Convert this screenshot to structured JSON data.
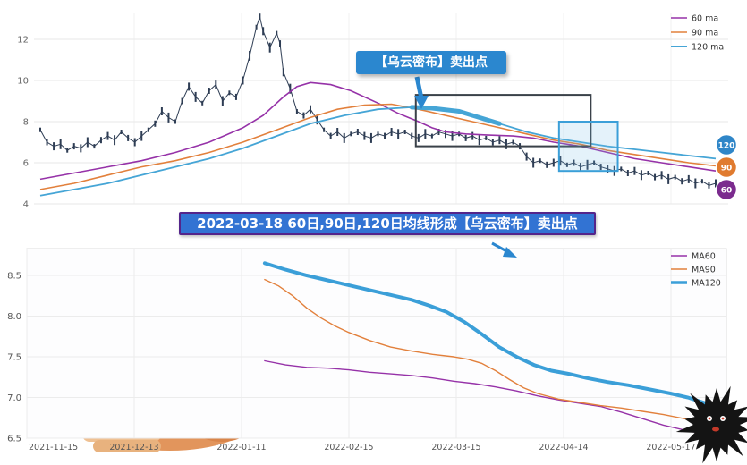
{
  "banner": {
    "text": "2022-03-18 60日,90日,120日均线形成【乌云密布】卖出点"
  },
  "chart_data": [
    {
      "name": "daily-price-chart",
      "type": "line",
      "title": "",
      "ylim": [
        4,
        13.5
      ],
      "yticks": [
        "4",
        "6",
        "8",
        "10",
        "12"
      ],
      "grid": "both",
      "legend_position": "top-right",
      "annotation": {
        "text": "【乌云密布】卖出点",
        "color": "#2b87cf"
      },
      "price_color": "#2e3d54",
      "legend": [
        {
          "label": "60 ma",
          "color": "#9632a8"
        },
        {
          "label": "90 ma",
          "color": "#e2803c"
        },
        {
          "label": "120 ma",
          "color": "#45a5d6"
        }
      ],
      "badges": [
        {
          "label": "120",
          "color": "#2f86c8"
        },
        {
          "label": "90",
          "color": "#e07b2f"
        },
        {
          "label": "60",
          "color": "#7b2b8e"
        }
      ],
      "highlight_boxes": [
        {
          "name": "dark-box",
          "x": [
            0.556,
            0.815
          ],
          "y": [
            6.8,
            9.3
          ],
          "stroke": "#3a4149",
          "fill": "none"
        },
        {
          "name": "blue-box",
          "x": [
            0.768,
            0.855
          ],
          "y": [
            5.6,
            8.0
          ],
          "stroke": "#3b9fd8",
          "fill": "rgba(120,190,230,0.2)"
        }
      ],
      "ma120_highlight_range": [
        0.54,
        0.705
      ],
      "series": {
        "price": [
          [
            0.0,
            7.6
          ],
          [
            0.01,
            7.0
          ],
          [
            0.02,
            6.8
          ],
          [
            0.03,
            6.9
          ],
          [
            0.04,
            6.6
          ],
          [
            0.05,
            6.8
          ],
          [
            0.06,
            6.7
          ],
          [
            0.07,
            7.0
          ],
          [
            0.08,
            6.8
          ],
          [
            0.09,
            7.1
          ],
          [
            0.1,
            7.3
          ],
          [
            0.11,
            7.1
          ],
          [
            0.12,
            7.5
          ],
          [
            0.13,
            7.2
          ],
          [
            0.14,
            7.0
          ],
          [
            0.15,
            7.3
          ],
          [
            0.16,
            7.6
          ],
          [
            0.17,
            7.9
          ],
          [
            0.18,
            8.5
          ],
          [
            0.19,
            8.2
          ],
          [
            0.2,
            8.0
          ],
          [
            0.21,
            9.0
          ],
          [
            0.22,
            9.7
          ],
          [
            0.23,
            9.2
          ],
          [
            0.24,
            8.9
          ],
          [
            0.25,
            9.5
          ],
          [
            0.26,
            9.8
          ],
          [
            0.27,
            9.0
          ],
          [
            0.28,
            9.4
          ],
          [
            0.29,
            9.2
          ],
          [
            0.3,
            10.0
          ],
          [
            0.31,
            11.2
          ],
          [
            0.32,
            12.6
          ],
          [
            0.325,
            13.1
          ],
          [
            0.33,
            12.4
          ],
          [
            0.34,
            11.6
          ],
          [
            0.35,
            12.3
          ],
          [
            0.355,
            11.8
          ],
          [
            0.36,
            10.4
          ],
          [
            0.37,
            9.6
          ],
          [
            0.38,
            8.5
          ],
          [
            0.39,
            8.3
          ],
          [
            0.4,
            8.6
          ],
          [
            0.41,
            8.1
          ],
          [
            0.42,
            7.6
          ],
          [
            0.43,
            7.3
          ],
          [
            0.44,
            7.5
          ],
          [
            0.45,
            7.2
          ],
          [
            0.46,
            7.4
          ],
          [
            0.47,
            7.5
          ],
          [
            0.48,
            7.3
          ],
          [
            0.49,
            7.2
          ],
          [
            0.5,
            7.4
          ],
          [
            0.51,
            7.3
          ],
          [
            0.52,
            7.5
          ],
          [
            0.53,
            7.4
          ],
          [
            0.54,
            7.5
          ],
          [
            0.55,
            7.3
          ],
          [
            0.56,
            7.2
          ],
          [
            0.57,
            7.4
          ],
          [
            0.58,
            7.3
          ],
          [
            0.59,
            7.5
          ],
          [
            0.6,
            7.4
          ],
          [
            0.61,
            7.3
          ],
          [
            0.62,
            7.4
          ],
          [
            0.63,
            7.2
          ],
          [
            0.64,
            7.3
          ],
          [
            0.65,
            7.1
          ],
          [
            0.66,
            7.2
          ],
          [
            0.67,
            7.0
          ],
          [
            0.68,
            7.1
          ],
          [
            0.69,
            6.9
          ],
          [
            0.7,
            7.0
          ],
          [
            0.71,
            6.8
          ],
          [
            0.72,
            6.3
          ],
          [
            0.73,
            6.0
          ],
          [
            0.74,
            6.1
          ],
          [
            0.75,
            5.9
          ],
          [
            0.76,
            6.0
          ],
          [
            0.77,
            6.1
          ],
          [
            0.78,
            5.9
          ],
          [
            0.79,
            6.0
          ],
          [
            0.8,
            5.8
          ],
          [
            0.81,
            5.9
          ],
          [
            0.82,
            6.0
          ],
          [
            0.83,
            5.8
          ],
          [
            0.84,
            5.7
          ],
          [
            0.85,
            5.6
          ],
          [
            0.86,
            5.7
          ],
          [
            0.87,
            5.5
          ],
          [
            0.88,
            5.6
          ],
          [
            0.89,
            5.4
          ],
          [
            0.9,
            5.5
          ],
          [
            0.91,
            5.3
          ],
          [
            0.92,
            5.4
          ],
          [
            0.93,
            5.2
          ],
          [
            0.94,
            5.3
          ],
          [
            0.95,
            5.1
          ],
          [
            0.96,
            5.2
          ],
          [
            0.97,
            5.0
          ],
          [
            0.98,
            5.1
          ],
          [
            0.99,
            4.9
          ],
          [
            1.0,
            5.0
          ]
        ],
        "ma60": [
          [
            0.0,
            5.2
          ],
          [
            0.05,
            5.5
          ],
          [
            0.1,
            5.8
          ],
          [
            0.15,
            6.1
          ],
          [
            0.2,
            6.5
          ],
          [
            0.25,
            7.0
          ],
          [
            0.3,
            7.7
          ],
          [
            0.33,
            8.3
          ],
          [
            0.36,
            9.2
          ],
          [
            0.38,
            9.7
          ],
          [
            0.4,
            9.9
          ],
          [
            0.43,
            9.8
          ],
          [
            0.46,
            9.5
          ],
          [
            0.5,
            8.9
          ],
          [
            0.53,
            8.4
          ],
          [
            0.56,
            8.0
          ],
          [
            0.58,
            7.7
          ],
          [
            0.6,
            7.5
          ],
          [
            0.63,
            7.4
          ],
          [
            0.66,
            7.35
          ],
          [
            0.7,
            7.3
          ],
          [
            0.73,
            7.2
          ],
          [
            0.76,
            7.0
          ],
          [
            0.8,
            6.8
          ],
          [
            0.84,
            6.5
          ],
          [
            0.88,
            6.2
          ],
          [
            0.92,
            6.0
          ],
          [
            0.96,
            5.8
          ],
          [
            1.0,
            5.6
          ]
        ],
        "ma90": [
          [
            0.0,
            4.7
          ],
          [
            0.05,
            5.0
          ],
          [
            0.1,
            5.4
          ],
          [
            0.15,
            5.8
          ],
          [
            0.2,
            6.1
          ],
          [
            0.25,
            6.5
          ],
          [
            0.3,
            7.0
          ],
          [
            0.35,
            7.6
          ],
          [
            0.4,
            8.2
          ],
          [
            0.44,
            8.6
          ],
          [
            0.48,
            8.8
          ],
          [
            0.52,
            8.85
          ],
          [
            0.56,
            8.6
          ],
          [
            0.6,
            8.3
          ],
          [
            0.64,
            8.0
          ],
          [
            0.68,
            7.7
          ],
          [
            0.72,
            7.4
          ],
          [
            0.76,
            7.1
          ],
          [
            0.8,
            6.9
          ],
          [
            0.84,
            6.6
          ],
          [
            0.88,
            6.4
          ],
          [
            0.92,
            6.2
          ],
          [
            0.96,
            6.0
          ],
          [
            1.0,
            5.85
          ]
        ],
        "ma120": [
          [
            0.0,
            4.4
          ],
          [
            0.05,
            4.7
          ],
          [
            0.1,
            5.0
          ],
          [
            0.15,
            5.4
          ],
          [
            0.2,
            5.8
          ],
          [
            0.25,
            6.2
          ],
          [
            0.3,
            6.7
          ],
          [
            0.35,
            7.3
          ],
          [
            0.4,
            7.9
          ],
          [
            0.45,
            8.3
          ],
          [
            0.5,
            8.6
          ],
          [
            0.55,
            8.7
          ],
          [
            0.58,
            8.65
          ],
          [
            0.62,
            8.5
          ],
          [
            0.65,
            8.2
          ],
          [
            0.68,
            7.9
          ],
          [
            0.72,
            7.5
          ],
          [
            0.76,
            7.2
          ],
          [
            0.8,
            7.0
          ],
          [
            0.84,
            6.8
          ],
          [
            0.88,
            6.65
          ],
          [
            0.92,
            6.5
          ],
          [
            0.96,
            6.35
          ],
          [
            1.0,
            6.2
          ]
        ]
      }
    },
    {
      "name": "moving-average-zoom-chart",
      "type": "line",
      "ylim": [
        6.5,
        8.75
      ],
      "yticks": [
        "6.5",
        "7.0",
        "7.5",
        "8.0",
        "8.5"
      ],
      "xticks": [
        "2021-11-15",
        "2021-12-13",
        "2022-01-11",
        "2022-02-15",
        "2022-03-15",
        "2022-04-14",
        "2022-05-17"
      ],
      "grid": "both",
      "legend_position": "top-right",
      "legend": [
        {
          "label": "MA60",
          "color": "#9632a8",
          "width": 1.4
        },
        {
          "label": "MA90",
          "color": "#e2803c",
          "width": 1.4
        },
        {
          "label": "MA120",
          "color": "#3b9fd8",
          "width": 4
        }
      ],
      "series": {
        "ma60": [
          [
            0.34,
            7.45
          ],
          [
            0.37,
            7.4
          ],
          [
            0.4,
            7.37
          ],
          [
            0.43,
            7.36
          ],
          [
            0.46,
            7.34
          ],
          [
            0.49,
            7.31
          ],
          [
            0.52,
            7.29
          ],
          [
            0.55,
            7.27
          ],
          [
            0.58,
            7.24
          ],
          [
            0.61,
            7.2
          ],
          [
            0.64,
            7.17
          ],
          [
            0.67,
            7.13
          ],
          [
            0.7,
            7.08
          ],
          [
            0.73,
            7.02
          ],
          [
            0.76,
            6.97
          ],
          [
            0.79,
            6.93
          ],
          [
            0.82,
            6.89
          ],
          [
            0.85,
            6.82
          ],
          [
            0.88,
            6.74
          ],
          [
            0.91,
            6.66
          ],
          [
            0.94,
            6.6
          ],
          [
            0.97,
            6.55
          ]
        ],
        "ma90": [
          [
            0.34,
            8.45
          ],
          [
            0.36,
            8.37
          ],
          [
            0.38,
            8.25
          ],
          [
            0.4,
            8.1
          ],
          [
            0.42,
            7.98
          ],
          [
            0.44,
            7.88
          ],
          [
            0.46,
            7.8
          ],
          [
            0.49,
            7.7
          ],
          [
            0.52,
            7.62
          ],
          [
            0.55,
            7.57
          ],
          [
            0.58,
            7.53
          ],
          [
            0.61,
            7.5
          ],
          [
            0.63,
            7.47
          ],
          [
            0.65,
            7.42
          ],
          [
            0.67,
            7.33
          ],
          [
            0.69,
            7.22
          ],
          [
            0.71,
            7.12
          ],
          [
            0.73,
            7.05
          ],
          [
            0.76,
            6.98
          ],
          [
            0.79,
            6.94
          ],
          [
            0.82,
            6.9
          ],
          [
            0.85,
            6.87
          ],
          [
            0.88,
            6.83
          ],
          [
            0.91,
            6.79
          ],
          [
            0.94,
            6.74
          ],
          [
            0.97,
            6.68
          ]
        ],
        "ma120": [
          [
            0.34,
            8.65
          ],
          [
            0.37,
            8.57
          ],
          [
            0.4,
            8.5
          ],
          [
            0.43,
            8.44
          ],
          [
            0.46,
            8.38
          ],
          [
            0.49,
            8.32
          ],
          [
            0.52,
            8.26
          ],
          [
            0.55,
            8.2
          ],
          [
            0.575,
            8.13
          ],
          [
            0.6,
            8.05
          ],
          [
            0.625,
            7.93
          ],
          [
            0.65,
            7.78
          ],
          [
            0.675,
            7.62
          ],
          [
            0.7,
            7.5
          ],
          [
            0.725,
            7.4
          ],
          [
            0.75,
            7.33
          ],
          [
            0.775,
            7.29
          ],
          [
            0.8,
            7.24
          ],
          [
            0.83,
            7.19
          ],
          [
            0.86,
            7.15
          ],
          [
            0.89,
            7.1
          ],
          [
            0.92,
            7.05
          ],
          [
            0.945,
            7.0
          ],
          [
            0.97,
            6.93
          ]
        ]
      }
    }
  ],
  "illustrations": [
    {
      "name": "dark-cloud-illustration"
    },
    {
      "name": "dog-illustration"
    },
    {
      "name": "black-monster-illustration"
    }
  ]
}
